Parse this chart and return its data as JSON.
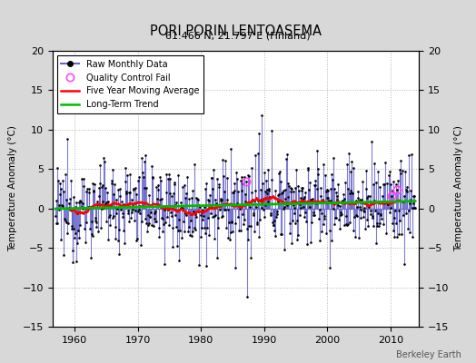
{
  "title": "PORI PORIN LENTOASEMA",
  "subtitle": "61.466 N, 21.797 E (Finland)",
  "credit": "Berkeley Earth",
  "ylabel": "Temperature Anomaly (°C)",
  "xlim": [
    1956.5,
    2014.5
  ],
  "ylim": [
    -15,
    20
  ],
  "yticks": [
    -15,
    -10,
    -5,
    0,
    5,
    10,
    15,
    20
  ],
  "xticks": [
    1960,
    1970,
    1980,
    1990,
    2000,
    2010
  ],
  "background_color": "#d8d8d8",
  "plot_background": "#ffffff",
  "raw_line_color": "#6666cc",
  "raw_dot_color": "#000000",
  "ma_color": "#ff0000",
  "trend_color": "#00bb00",
  "qc_color": "#ff44ff",
  "seed": 12345,
  "start_year": 1957,
  "end_year": 2013,
  "noise_std": 2.8,
  "trend_slope": 0.018,
  "qc_fail_indices": [
    362,
    638,
    649
  ]
}
